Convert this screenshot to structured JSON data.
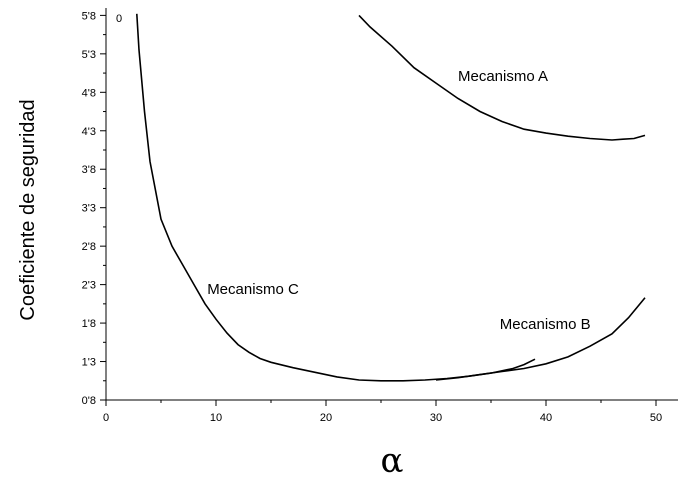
{
  "chart_data": {
    "type": "line",
    "xlabel": "α",
    "ylabel": "Coeficiente de seguridad",
    "corner_label": "0",
    "xlim": [
      0,
      52
    ],
    "ylim": [
      0.8,
      6.0
    ],
    "x_ticks": [
      0,
      10,
      20,
      30,
      40,
      50
    ],
    "x_tick_labels": [
      "0",
      "10",
      "20",
      "30",
      "40",
      "50"
    ],
    "y_ticks": [
      0.8,
      1.3,
      1.8,
      2.3,
      2.8,
      3.3,
      3.8,
      4.3,
      4.8,
      5.3,
      5.8
    ],
    "y_tick_labels": [
      "0'8",
      "1'3",
      "1'8",
      "2'3",
      "2'8",
      "3'3",
      "3'8",
      "4'3",
      "4'8",
      "5'3",
      "5'8"
    ],
    "grid": false,
    "series": [
      {
        "name": "Mecanismo A",
        "label_pos": [
          32,
          4.95
        ],
        "points": [
          [
            23,
            5.8
          ],
          [
            24,
            5.65
          ],
          [
            26,
            5.4
          ],
          [
            28,
            5.12
          ],
          [
            30,
            4.92
          ],
          [
            32,
            4.72
          ],
          [
            34,
            4.55
          ],
          [
            36,
            4.42
          ],
          [
            38,
            4.32
          ],
          [
            40,
            4.27
          ],
          [
            42,
            4.23
          ],
          [
            44,
            4.2
          ],
          [
            46,
            4.18
          ],
          [
            47,
            4.19
          ],
          [
            48,
            4.2
          ],
          [
            49,
            4.24
          ]
        ]
      },
      {
        "name": "Mecanismo B",
        "label_pos": [
          35.8,
          1.72
        ],
        "points": [
          [
            30,
            1.06
          ],
          [
            32,
            1.09
          ],
          [
            34,
            1.13
          ],
          [
            36,
            1.17
          ],
          [
            38,
            1.21
          ],
          [
            40,
            1.27
          ],
          [
            42,
            1.36
          ],
          [
            44,
            1.5
          ],
          [
            46,
            1.66
          ],
          [
            47.5,
            1.87
          ],
          [
            49,
            2.13
          ]
        ]
      },
      {
        "name": "Mecanismo C",
        "label_pos": [
          9.2,
          2.18
        ],
        "points": [
          [
            2.8,
            5.82
          ],
          [
            3,
            5.35
          ],
          [
            3.5,
            4.55
          ],
          [
            4,
            3.9
          ],
          [
            5,
            3.15
          ],
          [
            6,
            2.8
          ],
          [
            7,
            2.55
          ],
          [
            8,
            2.3
          ],
          [
            9,
            2.05
          ],
          [
            10,
            1.85
          ],
          [
            11,
            1.67
          ],
          [
            12,
            1.52
          ],
          [
            13,
            1.42
          ],
          [
            14,
            1.34
          ],
          [
            15,
            1.29
          ],
          [
            17,
            1.22
          ],
          [
            19,
            1.16
          ],
          [
            21,
            1.1
          ],
          [
            23,
            1.06
          ],
          [
            25,
            1.05
          ],
          [
            27,
            1.05
          ],
          [
            29,
            1.06
          ],
          [
            31,
            1.08
          ],
          [
            33,
            1.11
          ],
          [
            35,
            1.15
          ],
          [
            37,
            1.21
          ],
          [
            38,
            1.26
          ],
          [
            39,
            1.33
          ]
        ]
      }
    ]
  }
}
